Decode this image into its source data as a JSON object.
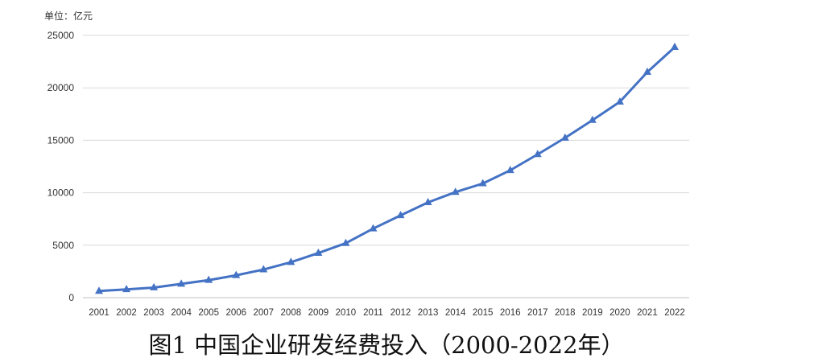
{
  "chart_data": {
    "type": "line",
    "title": "图1 中国企业研发经费投入（2000-2022年）",
    "unit_label": "单位：亿元",
    "xlabel": "",
    "ylabel": "",
    "categories": [
      "2001",
      "2002",
      "2003",
      "2004",
      "2005",
      "2006",
      "2007",
      "2008",
      "2009",
      "2010",
      "2011",
      "2012",
      "2013",
      "2014",
      "2015",
      "2016",
      "2017",
      "2018",
      "2019",
      "2020",
      "2021",
      "2022"
    ],
    "series": [
      {
        "values": [
          630,
          790,
          960,
          1310,
          1670,
          2130,
          2680,
          3380,
          4250,
          5190,
          6580,
          7840,
          9080,
          10060,
          10880,
          12140,
          13660,
          15230,
          16920,
          18670,
          21500,
          23880
        ],
        "color": "#4472C4",
        "marker": "triangle"
      }
    ],
    "ylim": [
      0,
      25000
    ],
    "yticks": [
      0,
      5000,
      10000,
      15000,
      20000,
      25000
    ],
    "grid": true,
    "legend": "none"
  }
}
